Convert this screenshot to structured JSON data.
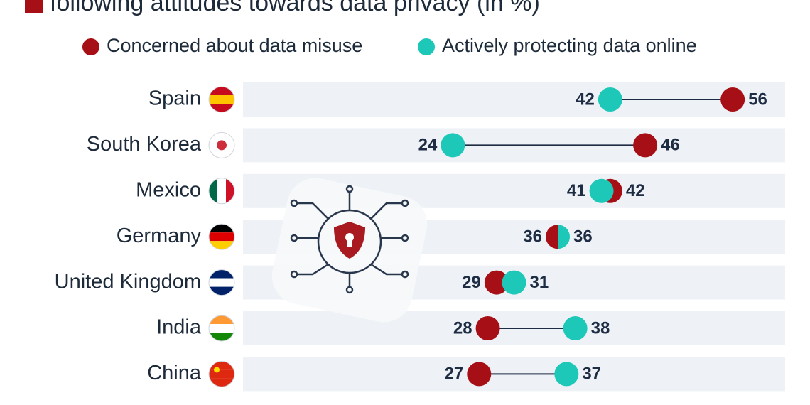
{
  "chart_data": {
    "type": "dumbbell",
    "title": "following attitudes towards data privacy (in %)",
    "categories": [
      "Spain",
      "South Korea",
      "Mexico",
      "Germany",
      "United Kingdom",
      "India",
      "China"
    ],
    "series": [
      {
        "name": "Concerned about data misuse",
        "color": "#a50f15",
        "values": [
          56,
          46,
          42,
          36,
          29,
          28,
          27
        ]
      },
      {
        "name": "Actively protecting data online",
        "color": "#1ec8b8",
        "values": [
          42,
          24,
          41,
          36,
          31,
          38,
          37
        ]
      }
    ],
    "xlim": [
      0,
      62
    ]
  }
}
